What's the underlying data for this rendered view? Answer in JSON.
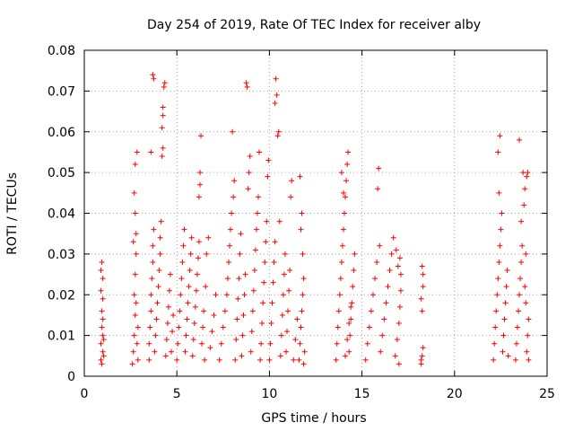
{
  "chart_data": {
    "type": "scatter",
    "title": "Day 254 of 2019, Rate Of TEC Index for receiver alby",
    "xlabel": "GPS time / hours",
    "ylabel": "ROTI / TECUs",
    "xlim": [
      0,
      25
    ],
    "ylim": [
      0,
      0.08
    ],
    "xticks": [
      0,
      5,
      10,
      15,
      20,
      25
    ],
    "yticks": [
      0,
      0.01,
      0.02,
      0.03,
      0.04,
      0.05,
      0.06,
      0.07,
      0.08
    ],
    "xtick_labels": [
      "0",
      "5",
      "10",
      "15",
      "20",
      "25"
    ],
    "ytick_labels": [
      "0",
      "0.01",
      "0.02",
      "0.03",
      "0.04",
      "0.05",
      "0.06",
      "0.07",
      "0.08"
    ],
    "grid": true,
    "marker": "+",
    "series": [
      {
        "name": "ROTI",
        "color": "#ff0000",
        "points": [
          [
            0.9,
            0.004
          ],
          [
            0.9,
            0.008
          ],
          [
            0.95,
            0.012
          ],
          [
            0.95,
            0.016
          ],
          [
            1.0,
            0.006
          ],
          [
            1.0,
            0.01
          ],
          [
            1.0,
            0.014
          ],
          [
            0.9,
            0.026
          ],
          [
            0.95,
            0.028
          ],
          [
            1.0,
            0.024
          ],
          [
            1.05,
            0.009
          ],
          [
            1.05,
            0.005
          ],
          [
            0.95,
            0.003
          ],
          [
            1.0,
            0.019
          ],
          [
            0.9,
            0.021
          ],
          [
            2.6,
            0.003
          ],
          [
            2.65,
            0.006
          ],
          [
            2.7,
            0.01
          ],
          [
            2.75,
            0.015
          ],
          [
            2.7,
            0.02
          ],
          [
            2.75,
            0.025
          ],
          [
            2.8,
            0.03
          ],
          [
            2.8,
            0.035
          ],
          [
            2.75,
            0.04
          ],
          [
            2.7,
            0.045
          ],
          [
            2.75,
            0.052
          ],
          [
            2.85,
            0.055
          ],
          [
            2.85,
            0.008
          ],
          [
            2.9,
            0.012
          ],
          [
            2.9,
            0.004
          ],
          [
            2.8,
            0.018
          ],
          [
            2.65,
            0.033
          ],
          [
            3.5,
            0.004
          ],
          [
            3.5,
            0.008
          ],
          [
            3.55,
            0.012
          ],
          [
            3.6,
            0.016
          ],
          [
            3.6,
            0.02
          ],
          [
            3.65,
            0.024
          ],
          [
            3.7,
            0.028
          ],
          [
            3.7,
            0.032
          ],
          [
            3.75,
            0.036
          ],
          [
            3.6,
            0.055
          ],
          [
            3.7,
            0.074
          ],
          [
            3.75,
            0.073
          ],
          [
            3.8,
            0.006
          ],
          [
            3.85,
            0.01
          ],
          [
            3.9,
            0.014
          ],
          [
            3.95,
            0.018
          ],
          [
            4.0,
            0.022
          ],
          [
            4.05,
            0.026
          ],
          [
            4.1,
            0.03
          ],
          [
            4.1,
            0.034
          ],
          [
            4.15,
            0.038
          ],
          [
            4.2,
            0.054
          ],
          [
            4.25,
            0.056
          ],
          [
            4.2,
            0.061
          ],
          [
            4.25,
            0.064
          ],
          [
            4.25,
            0.066
          ],
          [
            4.3,
            0.071
          ],
          [
            4.35,
            0.072
          ],
          [
            4.4,
            0.005
          ],
          [
            4.45,
            0.009
          ],
          [
            4.5,
            0.013
          ],
          [
            4.55,
            0.017
          ],
          [
            4.6,
            0.021
          ],
          [
            4.65,
            0.025
          ],
          [
            4.7,
            0.006
          ],
          [
            4.75,
            0.011
          ],
          [
            4.8,
            0.015
          ],
          [
            5.0,
            0.004
          ],
          [
            5.05,
            0.008
          ],
          [
            5.1,
            0.012
          ],
          [
            5.15,
            0.016
          ],
          [
            5.2,
            0.02
          ],
          [
            5.25,
            0.024
          ],
          [
            5.3,
            0.028
          ],
          [
            5.35,
            0.032
          ],
          [
            5.4,
            0.036
          ],
          [
            5.45,
            0.006
          ],
          [
            5.5,
            0.01
          ],
          [
            5.55,
            0.014
          ],
          [
            5.6,
            0.018
          ],
          [
            5.65,
            0.022
          ],
          [
            5.7,
            0.026
          ],
          [
            5.75,
            0.03
          ],
          [
            5.8,
            0.034
          ],
          [
            5.85,
            0.005
          ],
          [
            5.9,
            0.009
          ],
          [
            5.95,
            0.013
          ],
          [
            6.0,
            0.017
          ],
          [
            6.05,
            0.021
          ],
          [
            6.1,
            0.025
          ],
          [
            6.15,
            0.029
          ],
          [
            6.2,
            0.033
          ],
          [
            6.2,
            0.044
          ],
          [
            6.25,
            0.047
          ],
          [
            6.25,
            0.05
          ],
          [
            6.3,
            0.059
          ],
          [
            6.35,
            0.008
          ],
          [
            6.4,
            0.012
          ],
          [
            6.45,
            0.016
          ],
          [
            6.5,
            0.004
          ],
          [
            6.55,
            0.022
          ],
          [
            6.6,
            0.03
          ],
          [
            6.7,
            0.034
          ],
          [
            6.8,
            0.007
          ],
          [
            6.9,
            0.011
          ],
          [
            7.0,
            0.015
          ],
          [
            7.1,
            0.02
          ],
          [
            7.3,
            0.004
          ],
          [
            7.4,
            0.008
          ],
          [
            7.5,
            0.012
          ],
          [
            7.6,
            0.016
          ],
          [
            7.7,
            0.02
          ],
          [
            7.75,
            0.024
          ],
          [
            7.8,
            0.028
          ],
          [
            7.85,
            0.032
          ],
          [
            7.9,
            0.036
          ],
          [
            7.95,
            0.04
          ],
          [
            8.0,
            0.06
          ],
          [
            8.05,
            0.044
          ],
          [
            8.1,
            0.048
          ],
          [
            8.15,
            0.004
          ],
          [
            8.2,
            0.009
          ],
          [
            8.25,
            0.014
          ],
          [
            8.3,
            0.019
          ],
          [
            8.35,
            0.024
          ],
          [
            8.4,
            0.03
          ],
          [
            8.45,
            0.035
          ],
          [
            8.5,
            0.005
          ],
          [
            8.55,
            0.01
          ],
          [
            8.6,
            0.015
          ],
          [
            8.65,
            0.02
          ],
          [
            8.7,
            0.025
          ],
          [
            8.75,
            0.072
          ],
          [
            8.8,
            0.071
          ],
          [
            8.85,
            0.046
          ],
          [
            8.9,
            0.05
          ],
          [
            8.95,
            0.054
          ],
          [
            9.0,
            0.006
          ],
          [
            9.05,
            0.011
          ],
          [
            9.1,
            0.016
          ],
          [
            9.15,
            0.021
          ],
          [
            9.2,
            0.026
          ],
          [
            9.25,
            0.031
          ],
          [
            9.3,
            0.036
          ],
          [
            9.35,
            0.04
          ],
          [
            9.4,
            0.044
          ],
          [
            9.45,
            0.055
          ],
          [
            9.5,
            0.004
          ],
          [
            9.55,
            0.008
          ],
          [
            9.6,
            0.013
          ],
          [
            9.65,
            0.018
          ],
          [
            9.7,
            0.023
          ],
          [
            9.75,
            0.028
          ],
          [
            9.8,
            0.033
          ],
          [
            9.85,
            0.038
          ],
          [
            9.9,
            0.049
          ],
          [
            9.95,
            0.053
          ],
          [
            10.0,
            0.004
          ],
          [
            10.05,
            0.008
          ],
          [
            10.1,
            0.013
          ],
          [
            10.15,
            0.018
          ],
          [
            10.2,
            0.023
          ],
          [
            10.25,
            0.028
          ],
          [
            10.3,
            0.033
          ],
          [
            10.3,
            0.067
          ],
          [
            10.35,
            0.073
          ],
          [
            10.4,
            0.069
          ],
          [
            10.45,
            0.059
          ],
          [
            10.5,
            0.06
          ],
          [
            10.55,
            0.038
          ],
          [
            10.6,
            0.005
          ],
          [
            10.65,
            0.01
          ],
          [
            10.7,
            0.015
          ],
          [
            10.75,
            0.02
          ],
          [
            10.8,
            0.025
          ],
          [
            10.85,
            0.03
          ],
          [
            10.9,
            0.006
          ],
          [
            10.95,
            0.011
          ],
          [
            11.0,
            0.016
          ],
          [
            11.05,
            0.021
          ],
          [
            11.1,
            0.026
          ],
          [
            11.15,
            0.044
          ],
          [
            11.2,
            0.048
          ],
          [
            11.3,
            0.004
          ],
          [
            11.4,
            0.009
          ],
          [
            11.5,
            0.014
          ],
          [
            11.6,
            0.004
          ],
          [
            11.65,
            0.008
          ],
          [
            11.7,
            0.012
          ],
          [
            11.75,
            0.016
          ],
          [
            11.8,
            0.02
          ],
          [
            11.85,
            0.024
          ],
          [
            11.7,
            0.036
          ],
          [
            11.75,
            0.04
          ],
          [
            11.65,
            0.049
          ],
          [
            11.8,
            0.03
          ],
          [
            11.9,
            0.006
          ],
          [
            11.85,
            0.003
          ],
          [
            13.6,
            0.004
          ],
          [
            13.65,
            0.008
          ],
          [
            13.7,
            0.012
          ],
          [
            13.75,
            0.016
          ],
          [
            13.8,
            0.02
          ],
          [
            13.85,
            0.024
          ],
          [
            13.9,
            0.028
          ],
          [
            13.95,
            0.032
          ],
          [
            14.0,
            0.036
          ],
          [
            14.05,
            0.04
          ],
          [
            14.1,
            0.044
          ],
          [
            14.15,
            0.048
          ],
          [
            14.2,
            0.052
          ],
          [
            14.25,
            0.055
          ],
          [
            14.3,
            0.006
          ],
          [
            14.35,
            0.01
          ],
          [
            14.4,
            0.014
          ],
          [
            14.45,
            0.018
          ],
          [
            14.5,
            0.022
          ],
          [
            14.55,
            0.026
          ],
          [
            14.6,
            0.03
          ],
          [
            13.9,
            0.05
          ],
          [
            14.0,
            0.045
          ],
          [
            14.1,
            0.005
          ],
          [
            14.2,
            0.009
          ],
          [
            14.3,
            0.013
          ],
          [
            14.4,
            0.017
          ],
          [
            15.2,
            0.004
          ],
          [
            15.3,
            0.008
          ],
          [
            15.4,
            0.012
          ],
          [
            15.5,
            0.016
          ],
          [
            15.6,
            0.02
          ],
          [
            15.7,
            0.024
          ],
          [
            15.8,
            0.028
          ],
          [
            15.85,
            0.046
          ],
          [
            15.9,
            0.051
          ],
          [
            15.95,
            0.032
          ],
          [
            16.0,
            0.006
          ],
          [
            16.1,
            0.01
          ],
          [
            16.2,
            0.014
          ],
          [
            16.3,
            0.018
          ],
          [
            16.4,
            0.022
          ],
          [
            16.5,
            0.026
          ],
          [
            16.6,
            0.03
          ],
          [
            16.7,
            0.034
          ],
          [
            16.8,
            0.005
          ],
          [
            16.9,
            0.009
          ],
          [
            17.0,
            0.013
          ],
          [
            17.05,
            0.017
          ],
          [
            17.1,
            0.021
          ],
          [
            17.1,
            0.025
          ],
          [
            17.05,
            0.029
          ],
          [
            17.0,
            0.003
          ],
          [
            16.95,
            0.027
          ],
          [
            16.85,
            0.031
          ],
          [
            18.2,
            0.003
          ],
          [
            18.25,
            0.005
          ],
          [
            18.3,
            0.007
          ],
          [
            18.25,
            0.016
          ],
          [
            18.2,
            0.019
          ],
          [
            18.3,
            0.022
          ],
          [
            18.25,
            0.027
          ],
          [
            18.3,
            0.025
          ],
          [
            18.2,
            0.004
          ],
          [
            22.1,
            0.004
          ],
          [
            22.15,
            0.008
          ],
          [
            22.2,
            0.012
          ],
          [
            22.25,
            0.016
          ],
          [
            22.3,
            0.02
          ],
          [
            22.35,
            0.024
          ],
          [
            22.4,
            0.028
          ],
          [
            22.45,
            0.032
          ],
          [
            22.5,
            0.036
          ],
          [
            22.55,
            0.04
          ],
          [
            22.4,
            0.045
          ],
          [
            22.35,
            0.055
          ],
          [
            22.45,
            0.059
          ],
          [
            22.6,
            0.006
          ],
          [
            22.65,
            0.01
          ],
          [
            22.7,
            0.014
          ],
          [
            22.75,
            0.018
          ],
          [
            22.8,
            0.022
          ],
          [
            22.85,
            0.026
          ],
          [
            22.9,
            0.005
          ],
          [
            23.3,
            0.004
          ],
          [
            23.35,
            0.008
          ],
          [
            23.4,
            0.012
          ],
          [
            23.45,
            0.016
          ],
          [
            23.5,
            0.02
          ],
          [
            23.55,
            0.024
          ],
          [
            23.6,
            0.028
          ],
          [
            23.65,
            0.032
          ],
          [
            23.6,
            0.038
          ],
          [
            23.5,
            0.058
          ],
          [
            23.7,
            0.05
          ],
          [
            23.75,
            0.042
          ],
          [
            23.8,
            0.046
          ],
          [
            23.85,
            0.03
          ],
          [
            23.9,
            0.049
          ],
          [
            23.95,
            0.05
          ],
          [
            23.9,
            0.006
          ],
          [
            23.95,
            0.01
          ],
          [
            24.0,
            0.014
          ],
          [
            24.0,
            0.004
          ],
          [
            23.85,
            0.018
          ],
          [
            23.8,
            0.022
          ]
        ]
      }
    ]
  }
}
